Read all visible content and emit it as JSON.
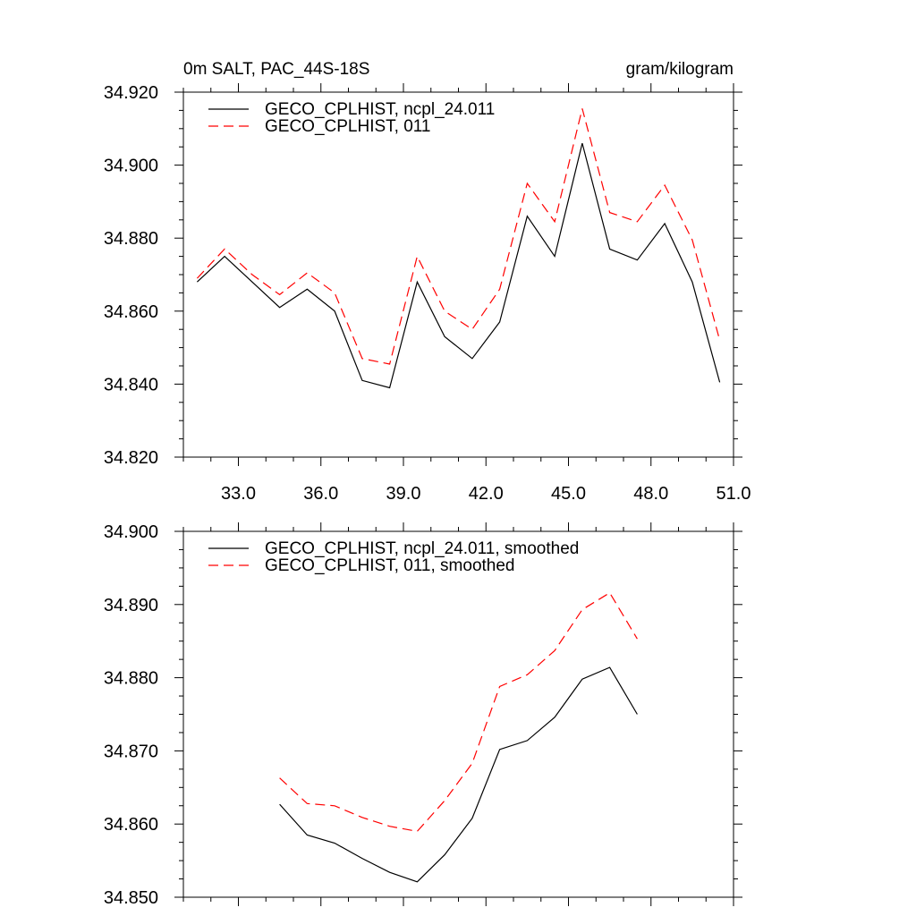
{
  "chart_data": [
    {
      "type": "line",
      "title_left": "0m SALT, PAC_44S-18S",
      "title_right": "gram/kilogram",
      "xlim": [
        31.0,
        51.0
      ],
      "ylim": [
        34.82,
        34.92
      ],
      "x_ticks": [
        33,
        36,
        39,
        42,
        45,
        48,
        51
      ],
      "x_tick_labels": [
        "33.0",
        "36.0",
        "39.0",
        "42.0",
        "45.0",
        "48.0",
        "51.0"
      ],
      "y_ticks": [
        34.82,
        34.84,
        34.86,
        34.88,
        34.9,
        34.92
      ],
      "y_tick_labels": [
        "34.820",
        "34.840",
        "34.860",
        "34.880",
        "34.900",
        "34.920"
      ],
      "x": [
        31.5,
        32.5,
        33.5,
        34.5,
        35.5,
        36.5,
        37.5,
        38.5,
        39.5,
        40.5,
        41.5,
        42.5,
        43.5,
        44.5,
        45.5,
        46.5,
        47.5,
        48.5,
        49.5,
        50.5
      ],
      "series": [
        {
          "name": "GECO_CPLHIST, ncpl_24.011",
          "color": "#000000",
          "dash": "solid",
          "values": [
            34.868,
            34.875,
            34.868,
            34.861,
            34.866,
            34.86,
            34.841,
            34.839,
            34.868,
            34.853,
            34.847,
            34.857,
            34.886,
            34.875,
            34.906,
            34.877,
            34.874,
            34.884,
            34.868,
            34.8405
          ]
        },
        {
          "name": "GECO_CPLHIST, 011",
          "color": "#ff0000",
          "dash": "dashed",
          "values": [
            34.869,
            34.877,
            34.87,
            34.8645,
            34.8705,
            34.865,
            34.847,
            34.8455,
            34.875,
            34.86,
            34.855,
            34.866,
            34.895,
            34.8845,
            34.9155,
            34.887,
            34.8845,
            34.8945,
            34.8795,
            34.852
          ]
        }
      ]
    },
    {
      "type": "line",
      "xlim": [
        31.0,
        51.0
      ],
      "ylim": [
        34.85,
        34.9
      ],
      "x_ticks": [
        33,
        36,
        39,
        42,
        45,
        48,
        51
      ],
      "y_ticks": [
        34.85,
        34.86,
        34.87,
        34.88,
        34.89,
        34.9
      ],
      "y_tick_labels": [
        "34.850",
        "34.860",
        "34.870",
        "34.880",
        "34.890",
        "34.900"
      ],
      "x": [
        34.5,
        35.5,
        36.5,
        37.5,
        38.5,
        39.5,
        40.5,
        41.5,
        42.5,
        43.5,
        44.5,
        45.5,
        46.5,
        47.5
      ],
      "series": [
        {
          "name": "GECO_CPLHIST, ncpl_24.011, smoothed",
          "color": "#000000",
          "dash": "solid",
          "values": [
            34.8627,
            34.8585,
            34.8574,
            34.8553,
            34.8534,
            34.8521,
            34.8558,
            34.8608,
            34.8702,
            34.8714,
            34.8746,
            34.8798,
            34.8814,
            34.875
          ]
        },
        {
          "name": "GECO_CPLHIST, 011, smoothed",
          "color": "#ff0000",
          "dash": "dashed",
          "values": [
            34.8663,
            34.8628,
            34.8625,
            34.8609,
            34.8597,
            34.859,
            34.8632,
            34.8683,
            34.8788,
            34.8804,
            34.8837,
            34.8893,
            34.8916,
            34.8853
          ]
        }
      ]
    }
  ]
}
